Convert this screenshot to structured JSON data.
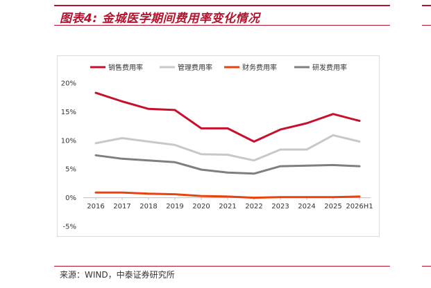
{
  "figure": {
    "title": "图表4:  金城医学期间费用率变化情况",
    "source": "来源：WIND，中泰证券研究所"
  },
  "colors": {
    "accent": "#b5122d",
    "sales": "#c8102e",
    "admin": "#c8c8c8",
    "finance": "#e8420f",
    "rd": "#7f7f7f"
  },
  "chart_data": {
    "type": "line",
    "title": "",
    "xlabel": "",
    "ylabel": "",
    "categories": [
      "2016",
      "2017",
      "2018",
      "2019",
      "2020",
      "2021",
      "2022",
      "2023",
      "2024",
      "2025",
      "2026H1"
    ],
    "y_ticks": [
      "20%",
      "15%",
      "10%",
      "5%",
      "0%",
      "-5%"
    ],
    "ylim": [
      -5,
      20
    ],
    "grid": false,
    "legend_position": "top",
    "series": [
      {
        "name": "销售费用率",
        "color": "#c8102e",
        "values": [
          18.3,
          16.8,
          15.5,
          15.3,
          12.1,
          12.1,
          9.8,
          11.9,
          13.0,
          14.6,
          13.4
        ]
      },
      {
        "name": "管理费用率",
        "color": "#c8c8c8",
        "values": [
          9.5,
          10.4,
          9.8,
          9.2,
          7.6,
          7.5,
          6.5,
          8.4,
          8.4,
          10.9,
          9.8
        ]
      },
      {
        "name": "财务费用率",
        "color": "#e8420f",
        "values": [
          0.9,
          0.9,
          0.7,
          0.6,
          0.3,
          0.2,
          0.0,
          0.1,
          0.1,
          0.1,
          0.2
        ]
      },
      {
        "name": "研发费用率",
        "color": "#7f7f7f",
        "values": [
          7.4,
          6.8,
          6.5,
          6.2,
          4.9,
          4.4,
          4.2,
          5.5,
          5.6,
          5.7,
          5.5
        ]
      }
    ]
  }
}
